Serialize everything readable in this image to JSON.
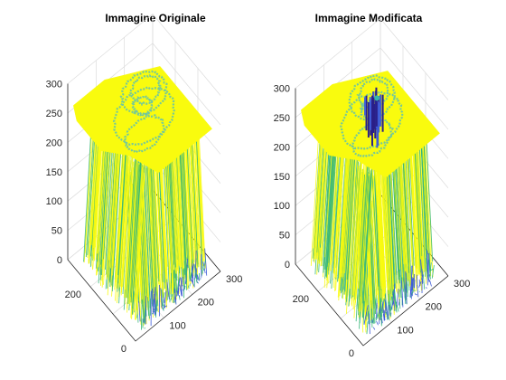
{
  "figure": {
    "background": "#ffffff"
  },
  "chart_data": [
    {
      "type": "surface3d",
      "title": "Immagine Originale",
      "xlabel": "",
      "ylabel": "",
      "zlabel": "",
      "xlim": [
        0,
        300
      ],
      "ylim": [
        0,
        300
      ],
      "zlim": [
        0,
        300
      ],
      "x_ticks": [
        100,
        200,
        300
      ],
      "y_ticks": [
        0,
        200
      ],
      "z_ticks": [
        0,
        50,
        100,
        150,
        200,
        250,
        300
      ],
      "grid": true,
      "colormap": "parula",
      "colors": {
        "high": "#f9fb0e",
        "mid": "#35b779",
        "low": "#3e5bd8",
        "dark": "#2a1f88"
      },
      "plateau_level": 255,
      "hole_dark": false
    },
    {
      "type": "surface3d",
      "title": "Immagine Modificata",
      "xlabel": "",
      "ylabel": "",
      "zlabel": "",
      "xlim": [
        0,
        300
      ],
      "ylim": [
        0,
        300
      ],
      "zlim": [
        0,
        300
      ],
      "x_ticks": [
        100,
        200,
        300
      ],
      "y_ticks": [
        0,
        200
      ],
      "z_ticks": [
        0,
        50,
        100,
        150,
        200,
        250,
        300
      ],
      "grid": true,
      "colormap": "parula",
      "colors": {
        "high": "#f9fb0e",
        "mid": "#35b779",
        "low": "#3e5bd8",
        "dark": "#2a1f88"
      },
      "plateau_level": 255,
      "hole_dark": true
    }
  ]
}
